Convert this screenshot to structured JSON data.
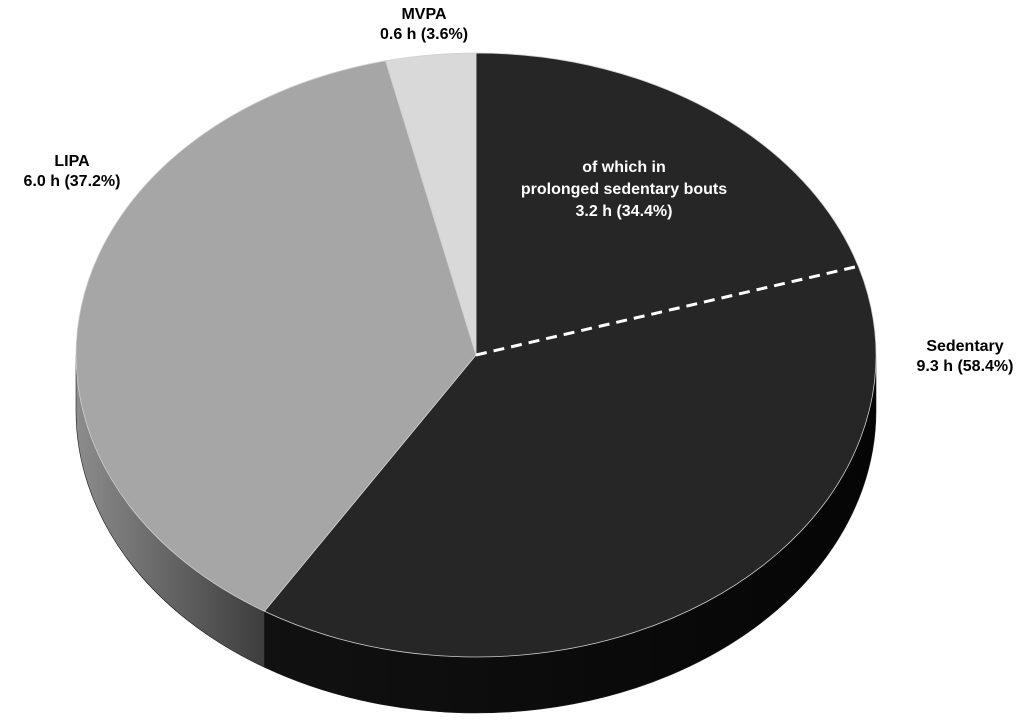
{
  "chart_data": {
    "type": "pie",
    "style": "3d",
    "title": "",
    "slices": [
      {
        "name": "Sedentary",
        "label_line1": "Sedentary",
        "label_line2": "9.3 h (58.4%)",
        "hours": 9.3,
        "percent": 58.4,
        "color": "#262626"
      },
      {
        "name": "LIPA",
        "label_line1": "LIPA",
        "label_line2": "6.0 h (37.2%)",
        "hours": 6.0,
        "percent": 37.2,
        "color": "#a6a6a6"
      },
      {
        "name": "MVPA",
        "label_line1": "MVPA",
        "label_line2": "0.6 h (3.6%)",
        "hours": 0.6,
        "percent": 3.6,
        "color": "#d9d9d9"
      }
    ],
    "sub_segment": {
      "of": "Sedentary",
      "label_lines": [
        "of which in",
        "prolonged sedentary bouts",
        "3.2 h (34.4%)"
      ],
      "hours": 3.2,
      "percent_of_parent": 34.4,
      "divider": "dashed white line"
    }
  }
}
